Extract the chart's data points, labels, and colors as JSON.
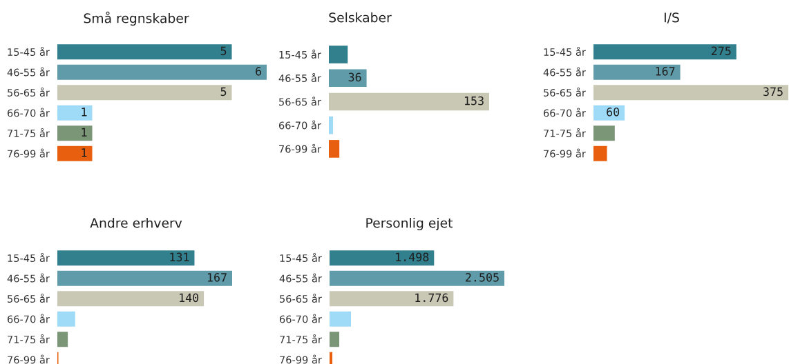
{
  "chart_data": [
    {
      "type": "bar",
      "orientation": "horizontal",
      "title": "Små regnskaber",
      "categories": [
        "15-45 år",
        "46-55 år",
        "56-65 år",
        "66-70 år",
        "71-75 år",
        "76-99 år"
      ],
      "values": [
        5,
        6,
        5,
        1,
        1,
        1
      ],
      "value_labels": [
        "5",
        "6",
        "5",
        "1",
        "1",
        "1"
      ],
      "colors": [
        "#327f8e",
        "#5f9ba8",
        "#c8c8b4",
        "#9fdbf7",
        "#7b9677",
        "#e8600f"
      ]
    },
    {
      "type": "bar",
      "orientation": "horizontal",
      "title": "Selskaber",
      "categories": [
        "15-45 år",
        "46-55 år",
        "56-65 år",
        "66-70 år",
        "76-99 år"
      ],
      "values": [
        18,
        36,
        153,
        4,
        10
      ],
      "value_labels": [
        null,
        "36",
        "153",
        null,
        null
      ],
      "colors": [
        "#327f8e",
        "#5f9ba8",
        "#c8c8b4",
        "#9fdbf7",
        "#e8600f"
      ]
    },
    {
      "type": "bar",
      "orientation": "horizontal",
      "title": "I/S",
      "categories": [
        "15-45 år",
        "46-55 år",
        "56-65 år",
        "66-70 år",
        "71-75 år",
        "76-99 år"
      ],
      "values": [
        275,
        167,
        375,
        60,
        41,
        26
      ],
      "value_labels": [
        "275",
        "167",
        "375",
        "60",
        null,
        null
      ],
      "colors": [
        "#327f8e",
        "#5f9ba8",
        "#c8c8b4",
        "#9fdbf7",
        "#7b9677",
        "#e8600f"
      ]
    },
    {
      "type": "bar",
      "orientation": "horizontal",
      "title": "Andre erhverv",
      "categories": [
        "15-45 år",
        "46-55 år",
        "56-65 år",
        "66-70 år",
        "71-75 år",
        "76-99 år"
      ],
      "values": [
        131,
        167,
        140,
        17,
        10,
        1
      ],
      "value_labels": [
        "131",
        "167",
        "140",
        null,
        null,
        null
      ],
      "colors": [
        "#327f8e",
        "#5f9ba8",
        "#c8c8b4",
        "#9fdbf7",
        "#7b9677",
        "#e8600f"
      ]
    },
    {
      "type": "bar",
      "orientation": "horizontal",
      "title": "Personlig ejet",
      "categories": [
        "15-45 år",
        "46-55 år",
        "56-65 år",
        "66-70 år",
        "71-75 år",
        "76-99 år"
      ],
      "values": [
        1498,
        2505,
        1776,
        307,
        139,
        40
      ],
      "value_labels": [
        "1.498",
        "2.505",
        "1.776",
        null,
        null,
        null
      ],
      "colors": [
        "#327f8e",
        "#5f9ba8",
        "#c8c8b4",
        "#9fdbf7",
        "#7b9677",
        "#e8600f"
      ]
    }
  ]
}
